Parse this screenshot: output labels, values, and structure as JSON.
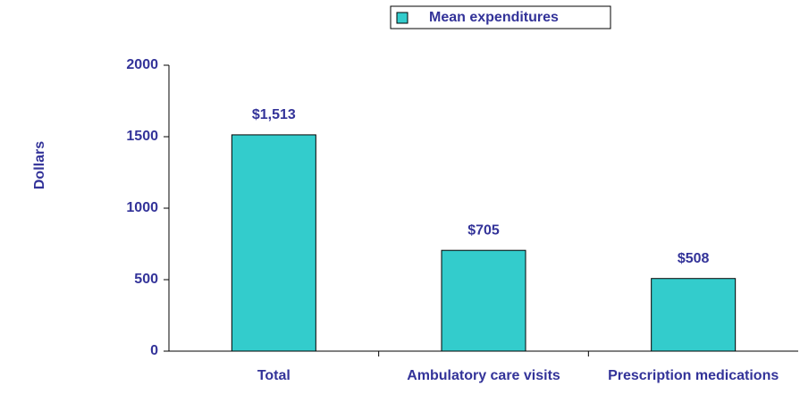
{
  "chart_data": {
    "type": "bar",
    "legend": "Mean expenditures",
    "y_label": "Dollars",
    "categories": [
      "Total",
      "Ambulatory care visits",
      "Prescription medications"
    ],
    "values": [
      1513,
      705,
      508
    ],
    "value_labels": [
      "$1,513",
      "$705",
      "$508"
    ],
    "color": "#33cccc",
    "ylim": [
      0,
      2000
    ],
    "yticks": [
      0,
      500,
      1000,
      1500,
      2000
    ],
    "legend_position": "top"
  }
}
